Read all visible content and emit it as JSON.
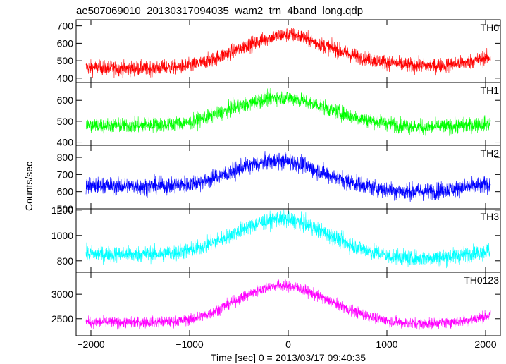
{
  "title": "ae507069010_20130317094035_wam2_trn_4band_long.qdp",
  "ylabel": "Counts/sec",
  "xlabel": "Time [sec] 0 = 2013/03/17 09:40:35",
  "chart_data": {
    "type": "line",
    "title": "ae507069010_20130317094035_wam2_trn_4band_long.qdp",
    "xlabel": "Time [sec] 0 = 2013/03/17 09:40:35",
    "ylabel": "Counts/sec",
    "xlim": [
      -2150,
      2150
    ],
    "xticks": [
      -2000,
      -1000,
      0,
      1000,
      2000
    ],
    "xtick_labels": [
      "−2000",
      "−1000",
      "0",
      "1000",
      "2000"
    ],
    "grid": false,
    "panels": [
      {
        "name": "TH0",
        "color": "#ff0000",
        "ylim": [
          375,
          735
        ],
        "yticks": [
          400,
          500,
          600,
          700
        ],
        "ytick_labels": [
          "400",
          "500",
          "600",
          "700"
        ],
        "noise": 30,
        "x": [
          -2050,
          -1600,
          -1200,
          -1000,
          -800,
          -600,
          -400,
          -200,
          -100,
          0,
          100,
          200,
          400,
          600,
          800,
          1000,
          1200,
          1400,
          1600,
          1800,
          2050
        ],
        "y": [
          460,
          455,
          460,
          470,
          500,
          545,
          590,
          630,
          645,
          650,
          645,
          620,
          580,
          540,
          510,
          490,
          475,
          470,
          475,
          490,
          520
        ]
      },
      {
        "name": "TH1",
        "color": "#00ff00",
        "ylim": [
          385,
          685
        ],
        "yticks": [
          400,
          500,
          600
        ],
        "ytick_labels": [
          "400",
          "500",
          "600"
        ],
        "noise": 25,
        "x": [
          -2050,
          -1600,
          -1200,
          -1000,
          -800,
          -600,
          -400,
          -200,
          -100,
          0,
          100,
          200,
          400,
          600,
          800,
          1000,
          1200,
          1400,
          1600,
          1800,
          2050
        ],
        "y": [
          480,
          480,
          485,
          495,
          520,
          555,
          585,
          610,
          615,
          612,
          605,
          590,
          560,
          530,
          505,
          490,
          478,
          472,
          475,
          480,
          490
        ]
      },
      {
        "name": "TH2",
        "color": "#0000ff",
        "ylim": [
          500,
          870
        ],
        "yticks": [
          500,
          600,
          700,
          800
        ],
        "ytick_labels": [
          "500",
          "600",
          "700",
          "800"
        ],
        "noise": 35,
        "x": [
          -2050,
          -1600,
          -1200,
          -1000,
          -800,
          -600,
          -400,
          -200,
          -100,
          0,
          100,
          200,
          400,
          600,
          800,
          1000,
          1200,
          1400,
          1600,
          1800,
          2050
        ],
        "y": [
          635,
          630,
          635,
          645,
          670,
          710,
          750,
          775,
          780,
          775,
          765,
          745,
          700,
          660,
          630,
          610,
          600,
          600,
          610,
          625,
          645
        ]
      },
      {
        "name": "TH3",
        "color": "#00ffff",
        "ylim": [
          710,
          1210
        ],
        "yticks": [
          800,
          1000,
          1200
        ],
        "ytick_labels": [
          "800",
          "1000",
          "1200"
        ],
        "noise": 45,
        "x": [
          -2050,
          -1600,
          -1200,
          -1000,
          -800,
          -600,
          -400,
          -200,
          -100,
          0,
          100,
          200,
          400,
          600,
          800,
          1000,
          1200,
          1400,
          1600,
          1800,
          2050
        ],
        "y": [
          855,
          850,
          860,
          880,
          930,
          1000,
          1070,
          1120,
          1130,
          1125,
          1110,
          1080,
          1010,
          940,
          880,
          840,
          820,
          820,
          830,
          850,
          880
        ]
      },
      {
        "name": "TH0123",
        "color": "#ff00ff",
        "ylim": [
          2150,
          3450
        ],
        "yticks": [
          2500,
          3000
        ],
        "ytick_labels": [
          "2500",
          "3000"
        ],
        "noise": 80,
        "x": [
          -2050,
          -1600,
          -1200,
          -1000,
          -800,
          -600,
          -400,
          -200,
          -100,
          0,
          100,
          200,
          400,
          600,
          800,
          1000,
          1200,
          1400,
          1600,
          1800,
          2050
        ],
        "y": [
          2430,
          2420,
          2440,
          2480,
          2600,
          2800,
          3000,
          3150,
          3180,
          3170,
          3130,
          3050,
          2880,
          2700,
          2560,
          2460,
          2410,
          2400,
          2420,
          2460,
          2570
        ]
      }
    ]
  }
}
